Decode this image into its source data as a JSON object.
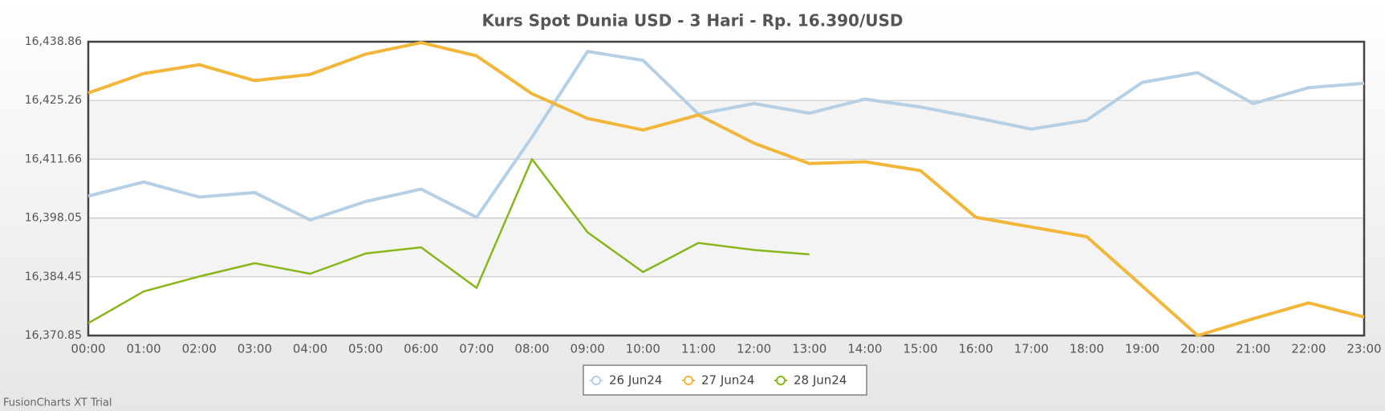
{
  "chart_data": {
    "type": "line",
    "title": "Kurs Spot Dunia USD - 3 Hari - Rp. 16.390/USD",
    "categories": [
      "00:00",
      "01:00",
      "02:00",
      "03:00",
      "04:00",
      "05:00",
      "06:00",
      "07:00",
      "08:00",
      "09:00",
      "10:00",
      "11:00",
      "12:00",
      "13:00",
      "14:00",
      "15:00",
      "16:00",
      "17:00",
      "18:00",
      "19:00",
      "20:00",
      "21:00",
      "22:00",
      "23:00"
    ],
    "series": [
      {
        "name": "26 Jun24",
        "color": "#b5d0e5",
        "values": [
          16403.12,
          16406.39,
          16402.91,
          16403.94,
          16397.6,
          16401.89,
          16404.75,
          16398.22,
          16416.8,
          16436.61,
          16434.57,
          16422.11,
          16424.56,
          16422.32,
          16425.58,
          16423.75,
          16421.29,
          16418.64,
          16420.68,
          16429.46,
          16431.71,
          16424.56,
          16428.24,
          16429.26
        ]
      },
      {
        "name": "27 Jun24",
        "color": "#f2b73a",
        "values": [
          16427.01,
          16431.51,
          16433.55,
          16429.87,
          16431.3,
          16436.0,
          16438.65,
          16435.59,
          16426.81,
          16421.09,
          16418.44,
          16421.91,
          16415.37,
          16410.67,
          16411.08,
          16409.04,
          16398.22,
          16395.97,
          16393.72,
          16382.29,
          16370.85,
          16374.73,
          16378.41,
          16375.14
        ]
      },
      {
        "name": "28 Jun24",
        "color": "#88b71b",
        "values": [
          16373.71,
          16381.06,
          16384.53,
          16387.6,
          16385.15,
          16389.84,
          16391.27,
          16381.88,
          16411.7,
          16394.74,
          16385.55,
          16392.29,
          16390.66,
          16389.64,
          null,
          null,
          null,
          null,
          null,
          null,
          null,
          null,
          null,
          null
        ]
      }
    ],
    "ylim": [
      16370.85,
      16438.86
    ],
    "yticks": [
      {
        "value": 16370.85,
        "label": "16,370.85"
      },
      {
        "value": 16384.45,
        "label": "16,384.45"
      },
      {
        "value": 16398.05,
        "label": "16,398.05"
      },
      {
        "value": 16411.66,
        "label": "16,411.66"
      },
      {
        "value": 16425.26,
        "label": "16,425.26"
      },
      {
        "value": 16438.86,
        "label": "16,438.86"
      }
    ],
    "grid": true,
    "legend": "bottom",
    "watermark": "FusionCharts XT Trial"
  }
}
